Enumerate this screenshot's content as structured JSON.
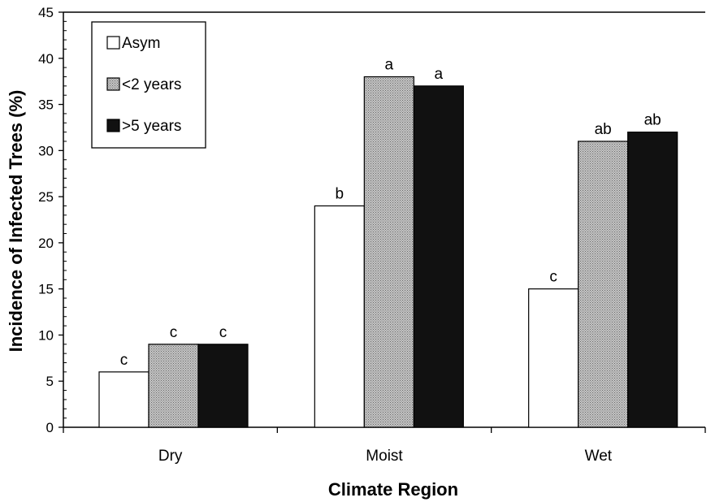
{
  "chart_data": {
    "type": "bar",
    "title": "",
    "xlabel": "Climate Region",
    "ylabel": "Incidence of Infected Trees (%)",
    "ylim": [
      0,
      45
    ],
    "yticks": [
      0,
      5,
      10,
      15,
      20,
      25,
      30,
      35,
      40,
      45
    ],
    "categories": [
      "Dry",
      "Moist",
      "Wet"
    ],
    "series": [
      {
        "name": "Asym",
        "values": [
          6,
          24,
          15
        ],
        "labels": [
          "c",
          "b",
          "c"
        ],
        "color": "#ffffff"
      },
      {
        "name": "<2 years",
        "values": [
          9,
          38,
          31
        ],
        "labels": [
          "c",
          "a",
          "ab"
        ],
        "color": "#b0b0b0"
      },
      {
        "name": ">5 years",
        "values": [
          9,
          37,
          32
        ],
        "labels": [
          "c",
          "a",
          "ab"
        ],
        "color": "#111111"
      }
    ],
    "legend_position": "top-left",
    "grid": false
  }
}
